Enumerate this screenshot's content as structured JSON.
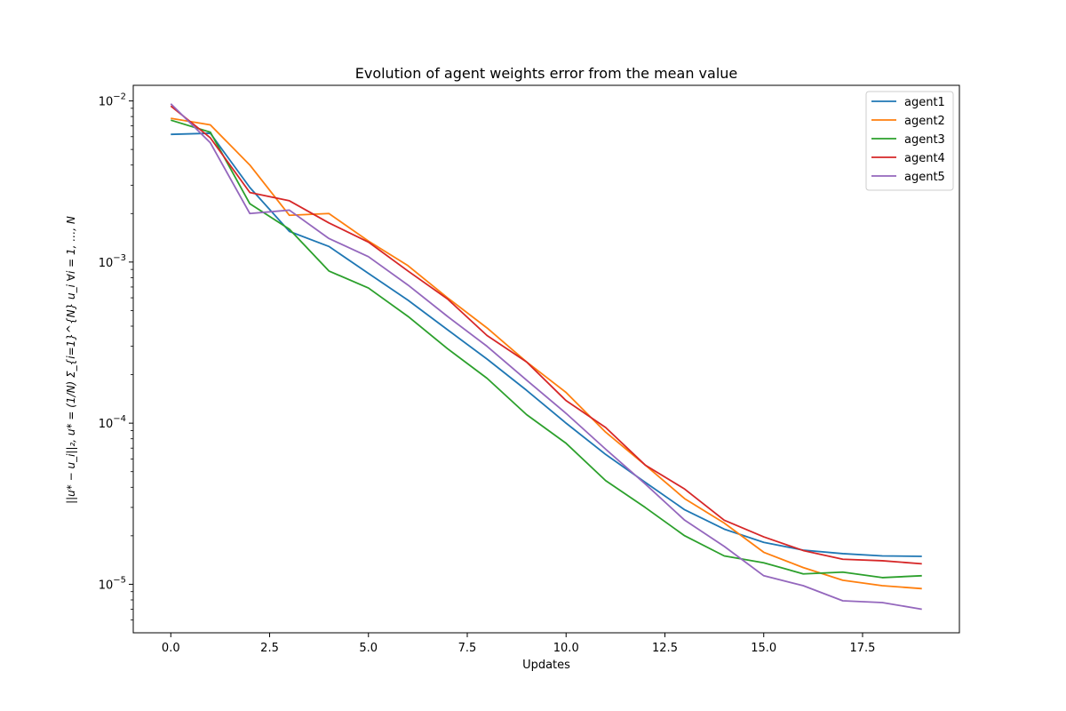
{
  "chart_data": {
    "type": "line",
    "title": "Evolution of agent weights error from the mean value",
    "xlabel": "Updates",
    "ylabel": "||u* − u_i||₂,   u* = (1/N) Σ_{i=1}^{N} u_i   ∀i = 1, …, N",
    "yscale": "log",
    "xlim": [
      -0.95,
      19.95
    ],
    "ylim": [
      5e-06,
      0.0125
    ],
    "xticks": [
      0.0,
      2.5,
      5.0,
      7.5,
      10.0,
      12.5,
      15.0,
      17.5
    ],
    "xtick_labels": [
      "0.0",
      "2.5",
      "5.0",
      "7.5",
      "10.0",
      "12.5",
      "15.0",
      "17.5"
    ],
    "yticks": [
      1e-05,
      0.0001,
      0.001,
      0.01
    ],
    "ytick_labels": [
      {
        "base": "10",
        "exp": "−5"
      },
      {
        "base": "10",
        "exp": "−4"
      },
      {
        "base": "10",
        "exp": "−3"
      },
      {
        "base": "10",
        "exp": "−2"
      }
    ],
    "grid": false,
    "legend_position": "top-right",
    "x": [
      0,
      1,
      2,
      3,
      4,
      5,
      6,
      7,
      8,
      9,
      10,
      11,
      12,
      13,
      14,
      15,
      16,
      17,
      18,
      19
    ],
    "series": [
      {
        "name": "agent1",
        "color": "#1f77b4",
        "values": [
          0.0062,
          0.0063,
          0.0029,
          0.00155,
          0.00125,
          0.00085,
          0.00058,
          0.00038,
          0.00025,
          0.00016,
          0.0001,
          6.4e-05,
          4.3e-05,
          2.9e-05,
          2.2e-05,
          1.82e-05,
          1.63e-05,
          1.55e-05,
          1.5e-05,
          1.49e-05
        ]
      },
      {
        "name": "agent2",
        "color": "#ff7f0e",
        "values": [
          0.0078,
          0.0071,
          0.004,
          0.00195,
          0.002,
          0.00135,
          0.00095,
          0.0006,
          0.00039,
          0.00024,
          0.000155,
          8.8e-05,
          5.5e-05,
          3.4e-05,
          2.4e-05,
          1.58e-05,
          1.27e-05,
          1.06e-05,
          9.8e-06,
          9.4e-06
        ]
      },
      {
        "name": "agent3",
        "color": "#2ca02c",
        "values": [
          0.0076,
          0.0064,
          0.0023,
          0.0016,
          0.00088,
          0.00069,
          0.00046,
          0.00029,
          0.00019,
          0.000113,
          7.5e-05,
          4.4e-05,
          3e-05,
          2e-05,
          1.5e-05,
          1.36e-05,
          1.16e-05,
          1.19e-05,
          1.1e-05,
          1.13e-05
        ]
      },
      {
        "name": "agent4",
        "color": "#d62728",
        "values": [
          0.0093,
          0.0059,
          0.0027,
          0.0024,
          0.00175,
          0.00133,
          0.00088,
          0.00059,
          0.00035,
          0.00024,
          0.000138,
          9.4e-05,
          5.5e-05,
          3.9e-05,
          2.5e-05,
          1.97e-05,
          1.62e-05,
          1.43e-05,
          1.4e-05,
          1.34e-05
        ]
      },
      {
        "name": "agent5",
        "color": "#9467bd",
        "values": [
          0.0096,
          0.0055,
          0.002,
          0.0021,
          0.0014,
          0.00108,
          0.00072,
          0.00046,
          0.0003,
          0.000185,
          0.000115,
          6.9e-05,
          4.2e-05,
          2.5e-05,
          1.72e-05,
          1.13e-05,
          9.8e-06,
          7.9e-06,
          7.7e-06,
          7e-06
        ]
      }
    ]
  }
}
